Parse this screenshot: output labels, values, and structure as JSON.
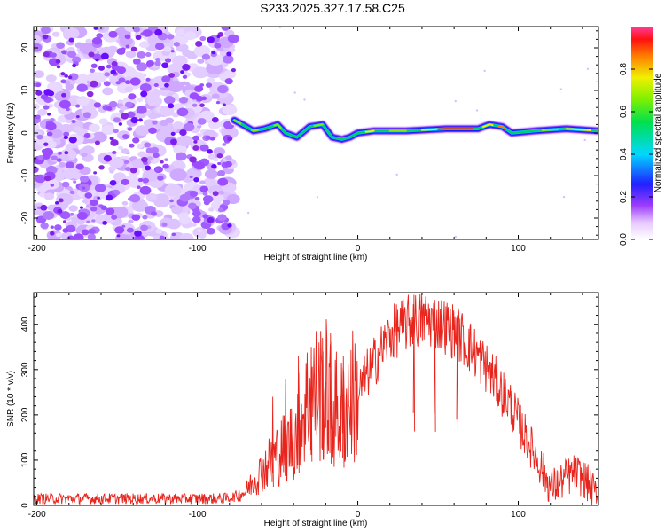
{
  "title": "S233.2025.327.17.58.C25",
  "chart_data": [
    {
      "type": "heatmap",
      "title": "S233.2025.327.17.58.C25",
      "xlabel": "Height of straight line (km)",
      "ylabel": "Frequency (Hz)",
      "xlim": [
        -202,
        150
      ],
      "ylim": [
        -25,
        25
      ],
      "xticks": [
        -200,
        -100,
        0,
        100
      ],
      "yticks": [
        -20,
        -10,
        0,
        10,
        20
      ],
      "noise_region_x": [
        -202,
        -77
      ],
      "signal_trace": [
        {
          "x": -77,
          "y": 3
        },
        {
          "x": -72,
          "y": 2
        },
        {
          "x": -65,
          "y": 0.5
        },
        {
          "x": -58,
          "y": 1
        },
        {
          "x": -50,
          "y": 2
        },
        {
          "x": -45,
          "y": 0
        },
        {
          "x": -38,
          "y": -1
        },
        {
          "x": -30,
          "y": 1.5
        },
        {
          "x": -22,
          "y": 2
        },
        {
          "x": -16,
          "y": -1
        },
        {
          "x": -10,
          "y": -1.5
        },
        {
          "x": -5,
          "y": -1
        },
        {
          "x": 0,
          "y": 0
        },
        {
          "x": 10,
          "y": 0.5
        },
        {
          "x": 30,
          "y": 0.5
        },
        {
          "x": 55,
          "y": 1
        },
        {
          "x": 75,
          "y": 1
        },
        {
          "x": 82,
          "y": 2
        },
        {
          "x": 90,
          "y": 1.5
        },
        {
          "x": 96,
          "y": 0
        },
        {
          "x": 110,
          "y": 0.5
        },
        {
          "x": 130,
          "y": 1
        },
        {
          "x": 150,
          "y": 0.5
        }
      ],
      "colorbar": {
        "label": "Normalized spectral amplitude",
        "range": [
          0,
          1
        ],
        "ticks": [
          "0.0",
          "0.2",
          "0.4",
          "0.6",
          "0.8"
        ],
        "tick_values": [
          0,
          0.2,
          0.4,
          0.6,
          0.8
        ]
      }
    },
    {
      "type": "line",
      "xlabel": "Height of straight line (km)",
      "ylabel": "SNR (10 * v/v)",
      "xlim": [
        -202,
        150
      ],
      "ylim": [
        0,
        470
      ],
      "xticks": [
        -200,
        -100,
        0,
        100
      ],
      "yticks": [
        0,
        100,
        200,
        300,
        400
      ],
      "color": "#e8241c",
      "series": [
        {
          "name": "SNR",
          "x": [
            -202,
            -190,
            -180,
            -170,
            -160,
            -150,
            -140,
            -130,
            -120,
            -110,
            -100,
            -90,
            -80,
            -75,
            -70,
            -65,
            -60,
            -55,
            -50,
            -45,
            -40,
            -35,
            -30,
            -25,
            -20,
            -15,
            -10,
            -5,
            0,
            5,
            10,
            15,
            20,
            25,
            30,
            35,
            40,
            45,
            50,
            55,
            60,
            65,
            70,
            75,
            80,
            85,
            90,
            95,
            100,
            105,
            110,
            115,
            120,
            125,
            130,
            135,
            140,
            145,
            150
          ],
          "y": [
            15,
            15,
            15,
            15,
            15,
            15,
            15,
            15,
            15,
            15,
            15,
            15,
            16,
            22,
            30,
            55,
            75,
            95,
            115,
            130,
            150,
            200,
            240,
            250,
            255,
            215,
            200,
            240,
            245,
            285,
            315,
            345,
            375,
            390,
            400,
            408,
            410,
            410,
            405,
            395,
            385,
            370,
            350,
            330,
            305,
            280,
            250,
            225,
            185,
            150,
            115,
            80,
            40,
            48,
            62,
            70,
            62,
            42,
            15
          ]
        }
      ],
      "noise_amplitude_baseline": 12,
      "spikes": [
        {
          "x": -53,
          "y": 240
        },
        {
          "x": -45,
          "y": 280
        },
        {
          "x": -37,
          "y": 330
        },
        {
          "x": -29,
          "y": 350
        },
        {
          "x": -22,
          "y": 370
        },
        {
          "x": -17,
          "y": 380
        },
        {
          "x": -9,
          "y": 330
        },
        {
          "x": 35,
          "y": 465
        },
        {
          "x": 48,
          "y": 440
        },
        {
          "x": 62,
          "y": 420
        }
      ]
    }
  ]
}
